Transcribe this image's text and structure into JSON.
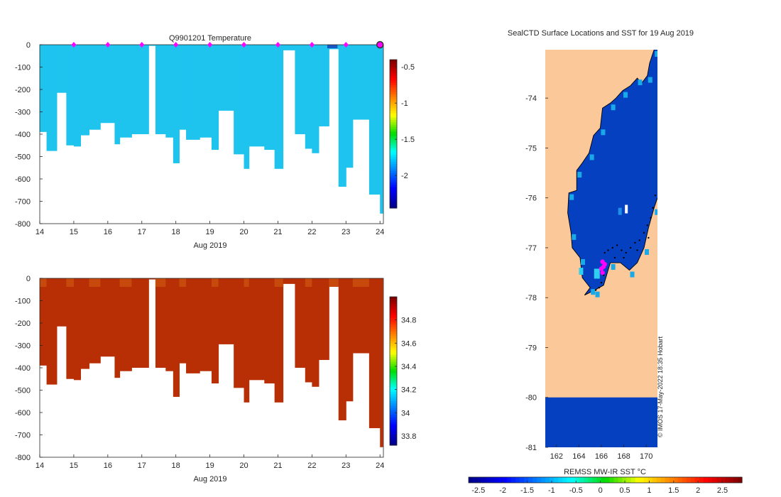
{
  "colors": {
    "temp_fill": "#1ec3ee",
    "temp_dark": "#1a55c4",
    "sal_fill": "#b82f05",
    "sal_light": "#c74a0c",
    "land": "#fbc999",
    "ocean": "#0540c0",
    "marker": "#ff00ff",
    "axis": "#262626"
  },
  "chart_data": [
    {
      "id": "temperature",
      "type": "heatmap",
      "title": "Q9901201  Temperature",
      "xlabel": "Aug 2019",
      "ylabel": "",
      "xlim": [
        14,
        24.1
      ],
      "ylim": [
        -800,
        0
      ],
      "xticks": [
        "14",
        "15",
        "16",
        "17",
        "18",
        "19",
        "20",
        "21",
        "22",
        "23",
        "24"
      ],
      "yticks": [
        "0",
        "-100",
        "-200",
        "-300",
        "-400",
        "-500",
        "-600",
        "-700",
        "-800"
      ],
      "surface_markers_x": [
        15,
        16,
        17,
        18,
        19,
        20,
        21,
        22,
        23
      ],
      "latest_marker_x": 24,
      "profiles": [
        [
          14,
          390
        ],
        [
          14.2,
          475
        ],
        [
          14.5,
          215
        ],
        [
          14.78,
          450
        ],
        [
          15,
          455
        ],
        [
          15.2,
          405
        ],
        [
          15.45,
          380
        ],
        [
          15.78,
          350
        ],
        [
          16.2,
          445
        ],
        [
          16.35,
          415
        ],
        [
          16.7,
          400
        ],
        [
          17.2,
          5
        ],
        [
          17.4,
          400
        ],
        [
          17.7,
          415
        ],
        [
          17.92,
          530
        ],
        [
          18.1,
          380
        ],
        [
          18.3,
          425
        ],
        [
          18.7,
          415
        ],
        [
          19.05,
          470
        ],
        [
          19.25,
          295
        ],
        [
          19.7,
          490
        ],
        [
          20,
          555
        ],
        [
          20.15,
          455
        ],
        [
          20.6,
          470
        ],
        [
          20.9,
          555
        ],
        [
          21.15,
          25
        ],
        [
          21.5,
          400
        ],
        [
          21.8,
          465
        ],
        [
          22,
          485
        ],
        [
          22.2,
          365
        ],
        [
          22.5,
          20
        ],
        [
          22.78,
          635
        ],
        [
          23,
          550
        ],
        [
          23.2,
          335
        ],
        [
          23.68,
          670
        ],
        [
          24,
          755
        ]
      ],
      "colorbar": {
        "ticks": [
          "-0.5",
          "-1",
          "-1.5",
          "-2"
        ],
        "values": [
          -0.5,
          -1,
          -1.5,
          -2
        ],
        "range": [
          -2.45,
          -0.4
        ]
      }
    },
    {
      "id": "salinity",
      "type": "heatmap",
      "title": "",
      "xlabel": "Aug 2019",
      "ylabel": "",
      "xlim": [
        14,
        24.1
      ],
      "ylim": [
        -800,
        0
      ],
      "xticks": [
        "14",
        "15",
        "16",
        "17",
        "18",
        "19",
        "20",
        "21",
        "22",
        "23",
        "24"
      ],
      "yticks": [
        "0",
        "-100",
        "-200",
        "-300",
        "-400",
        "-500",
        "-600",
        "-700",
        "-800"
      ],
      "profiles": [
        [
          14,
          390
        ],
        [
          14.2,
          475
        ],
        [
          14.5,
          215
        ],
        [
          14.78,
          450
        ],
        [
          15,
          455
        ],
        [
          15.2,
          405
        ],
        [
          15.45,
          380
        ],
        [
          15.78,
          350
        ],
        [
          16.2,
          445
        ],
        [
          16.35,
          415
        ],
        [
          16.7,
          400
        ],
        [
          17.2,
          5
        ],
        [
          17.4,
          400
        ],
        [
          17.7,
          415
        ],
        [
          17.92,
          530
        ],
        [
          18.1,
          380
        ],
        [
          18.3,
          425
        ],
        [
          18.7,
          415
        ],
        [
          19.05,
          470
        ],
        [
          19.25,
          295
        ],
        [
          19.7,
          490
        ],
        [
          20,
          555
        ],
        [
          20.15,
          455
        ],
        [
          20.6,
          470
        ],
        [
          20.9,
          555
        ],
        [
          21.15,
          25
        ],
        [
          21.5,
          400
        ],
        [
          21.8,
          465
        ],
        [
          22,
          485
        ],
        [
          22.2,
          365
        ],
        [
          22.5,
          20
        ],
        [
          22.78,
          635
        ],
        [
          23,
          550
        ],
        [
          23.2,
          335
        ],
        [
          23.68,
          670
        ],
        [
          24,
          755
        ]
      ],
      "colorbar": {
        "ticks": [
          "34.8",
          "34.6",
          "34.4",
          "34.2",
          "34",
          "33.8"
        ],
        "values": [
          34.8,
          34.6,
          34.4,
          34.2,
          34,
          33.8
        ],
        "range": [
          33.72,
          35.0
        ]
      }
    },
    {
      "id": "sst_map",
      "type": "heatmap",
      "title": "SealCTD Surface Locations and SST for 19 Aug 2019",
      "xlim": [
        161,
        171
      ],
      "ylim": [
        -81,
        -73.03
      ],
      "xticks": [
        "162",
        "164",
        "166",
        "168",
        "170"
      ],
      "yticks": [
        "-74",
        "-75",
        "-76",
        "-77",
        "-78",
        "-79",
        "-80",
        "-81"
      ],
      "ocean_south_of_lat": -80,
      "coastline": [
        [
          170.7,
          -73.03
        ],
        [
          170.3,
          -73.3
        ],
        [
          170.1,
          -73.55
        ],
        [
          169.6,
          -73.7
        ],
        [
          169.2,
          -73.6
        ],
        [
          168.6,
          -73.75
        ],
        [
          167.9,
          -73.85
        ],
        [
          167.3,
          -74.0
        ],
        [
          166.8,
          -74.1
        ],
        [
          166.1,
          -74.2
        ],
        [
          165.9,
          -74.6
        ],
        [
          165.3,
          -74.75
        ],
        [
          164.9,
          -75.1
        ],
        [
          164.3,
          -75.3
        ],
        [
          163.8,
          -75.45
        ],
        [
          163.8,
          -75.85
        ],
        [
          163.1,
          -75.9
        ],
        [
          163.0,
          -76.3
        ],
        [
          163.3,
          -76.7
        ],
        [
          163.4,
          -77.0
        ],
        [
          164.1,
          -77.2
        ],
        [
          164.3,
          -77.6
        ],
        [
          165.0,
          -77.8
        ],
        [
          164.5,
          -77.95
        ],
        [
          165.4,
          -77.85
        ],
        [
          166.2,
          -77.75
        ],
        [
          166.8,
          -77.3
        ],
        [
          167.7,
          -77.3
        ],
        [
          168.5,
          -77.45
        ],
        [
          169.2,
          -77.3
        ],
        [
          169.8,
          -77.0
        ],
        [
          170.2,
          -76.6
        ],
        [
          170.7,
          -76.2
        ],
        [
          171.0,
          -76.0
        ]
      ],
      "ice_shelf_points": [
        [
          166.3,
          -77.1
        ],
        [
          166.6,
          -77.05
        ],
        [
          167.0,
          -77.0
        ],
        [
          167.4,
          -76.95
        ],
        [
          167.8,
          -77.05
        ],
        [
          168.2,
          -77.1
        ],
        [
          168.6,
          -77.0
        ],
        [
          169.0,
          -76.9
        ],
        [
          169.4,
          -76.85
        ],
        [
          169.8,
          -76.7
        ],
        [
          170.1,
          -76.55
        ],
        [
          170.4,
          -76.4
        ],
        [
          170.6,
          -76.2
        ],
        [
          170.8,
          -75.95
        ],
        [
          166.0,
          -77.7
        ],
        [
          165.8,
          -77.8
        ],
        [
          165.5,
          -77.85
        ],
        [
          166.2,
          -77.55
        ],
        [
          167.2,
          -77.2
        ],
        [
          168.0,
          -77.2
        ],
        [
          169.2,
          -77.05
        ],
        [
          170.2,
          -76.8
        ]
      ],
      "seal_positions": [
        [
          166.1,
          -77.28
        ],
        [
          166.3,
          -77.33
        ],
        [
          166.0,
          -77.42
        ],
        [
          166.1,
          -77.5
        ],
        [
          166.2,
          -77.38
        ]
      ],
      "colorbar": {
        "label": "REMSS MW-IR SST °C",
        "ticks": [
          "-2.5",
          "-2",
          "-1.5",
          "-1",
          "-0.5",
          "0",
          "0.5",
          "1",
          "1.5",
          "2",
          "2.5"
        ],
        "values": [
          -2.5,
          -2,
          -1.5,
          -1,
          -0.5,
          0,
          0.5,
          1,
          1.5,
          2,
          2.5
        ],
        "range": [
          -2.7,
          2.9
        ]
      }
    }
  ],
  "footer": {
    "watermark": "© IMOS 17-May-2022 18:35 Hobart"
  }
}
